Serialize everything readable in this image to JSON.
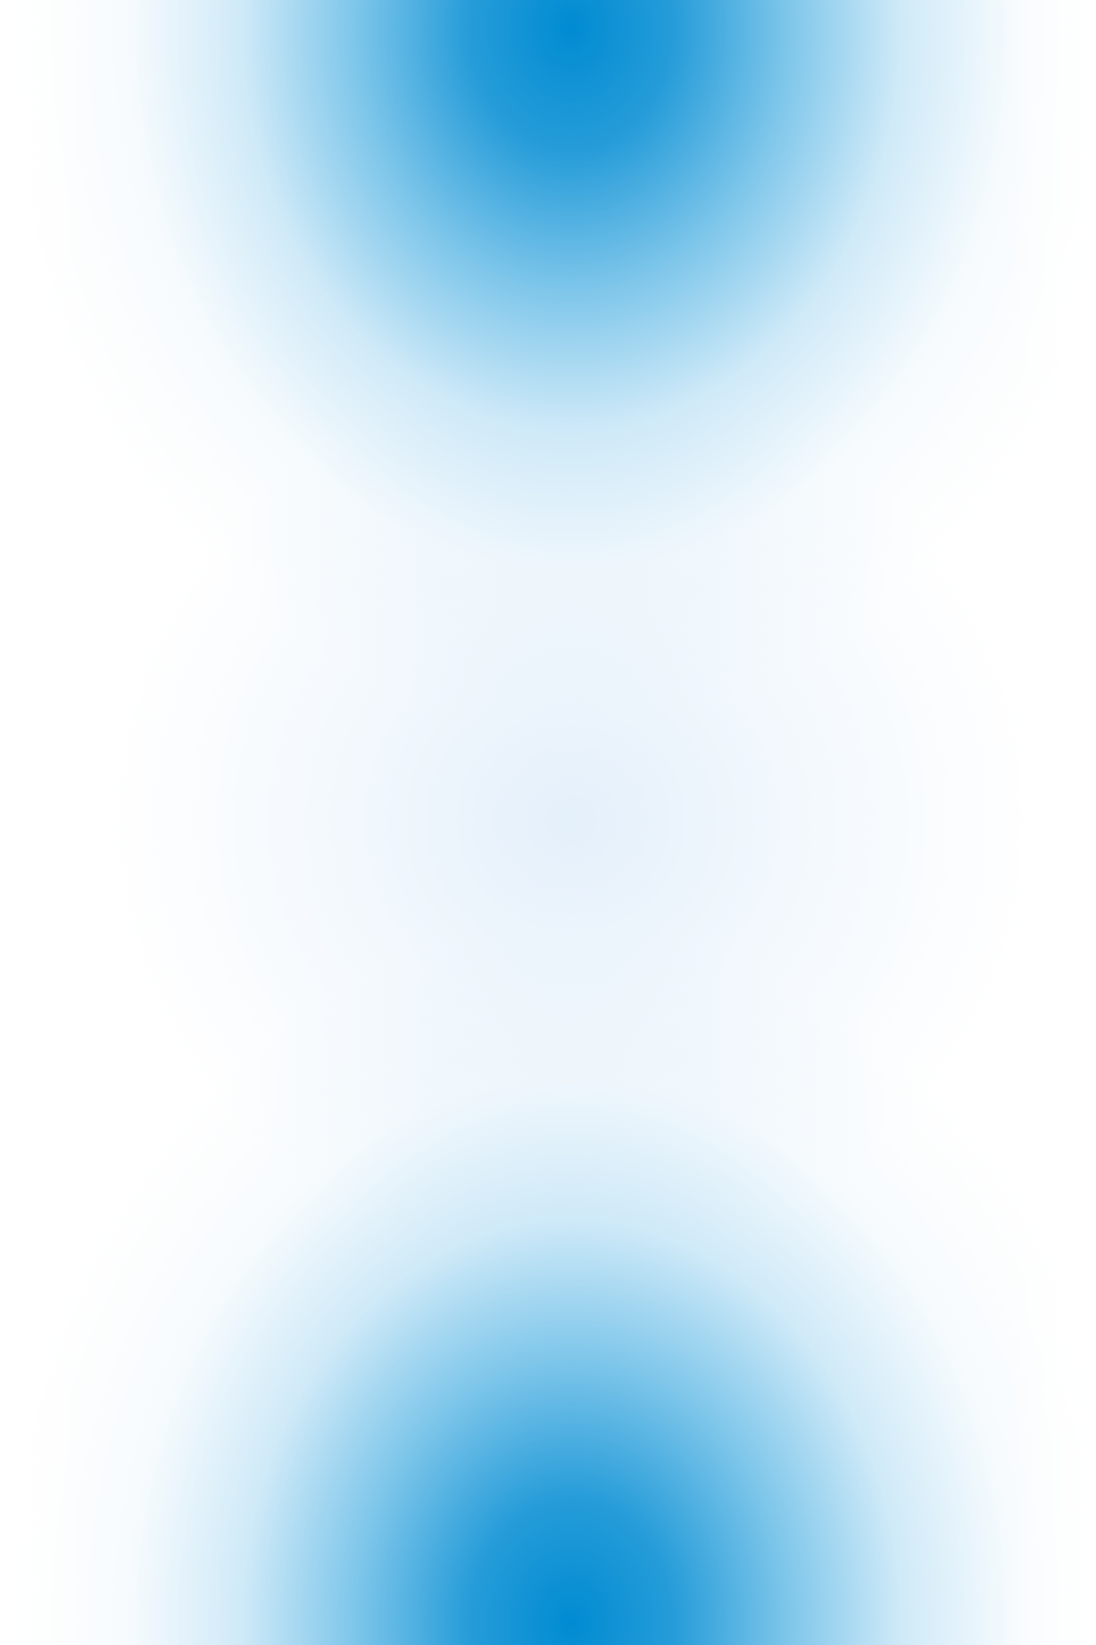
{
  "background": {
    "accent_color": "#008bd2",
    "base_color": "#ffffff",
    "haze_color": "#e8f2fb"
  }
}
